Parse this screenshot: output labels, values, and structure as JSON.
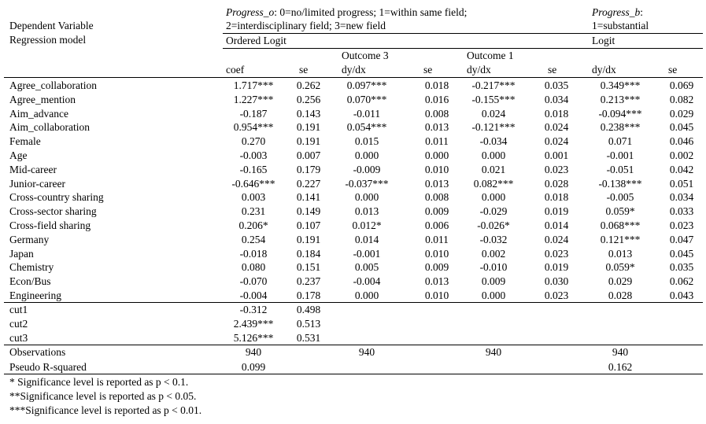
{
  "header": {
    "dependent_variable_label": "Dependent Variable",
    "regression_model_label": "Regression model",
    "progress_o_name": "Progress_o",
    "progress_o_desc1": ": 0=no/limited progress; 1=within same field;",
    "progress_o_desc2": "2=interdisciplinary field; 3=new field",
    "progress_b_name": "Progress_b",
    "progress_b_colon": ":",
    "progress_b_desc": "1=substantial",
    "ordered_logit": "Ordered Logit",
    "logit": "Logit",
    "outcome3": "Outcome 3",
    "outcome1": "Outcome 1",
    "columns": [
      "coef",
      "se",
      "dy/dx",
      "se",
      "dy/dx",
      "se",
      "dy/dx",
      "se"
    ]
  },
  "rows": [
    {
      "label": "Agree_collaboration",
      "v": [
        "1.717***",
        "0.262",
        "0.097***",
        "0.018",
        "-0.217***",
        "0.035",
        "0.349***",
        "0.069"
      ]
    },
    {
      "label": "Agree_mention",
      "v": [
        "1.227***",
        "0.256",
        "0.070***",
        "0.016",
        "-0.155***",
        "0.034",
        "0.213***",
        "0.082"
      ]
    },
    {
      "label": "Aim_advance",
      "v": [
        "-0.187",
        "0.143",
        "-0.011",
        "0.008",
        "0.024",
        "0.018",
        "-0.094***",
        "0.029"
      ]
    },
    {
      "label": "Aim_collaboration",
      "v": [
        "0.954***",
        "0.191",
        "0.054***",
        "0.013",
        "-0.121***",
        "0.024",
        "0.238***",
        "0.045"
      ]
    },
    {
      "label": "Female",
      "v": [
        "0.270",
        "0.191",
        "0.015",
        "0.011",
        "-0.034",
        "0.024",
        "0.071",
        "0.046"
      ]
    },
    {
      "label": "Age",
      "v": [
        "-0.003",
        "0.007",
        "0.000",
        "0.000",
        "0.000",
        "0.001",
        "-0.001",
        "0.002"
      ]
    },
    {
      "label": "Mid-career",
      "v": [
        "-0.165",
        "0.179",
        "-0.009",
        "0.010",
        "0.021",
        "0.023",
        "-0.051",
        "0.042"
      ]
    },
    {
      "label": "Junior-career",
      "v": [
        "-0.646***",
        "0.227",
        "-0.037***",
        "0.013",
        "0.082***",
        "0.028",
        "-0.138***",
        "0.051"
      ]
    },
    {
      "label": "Cross-country sharing",
      "v": [
        "0.003",
        "0.141",
        "0.000",
        "0.008",
        "0.000",
        "0.018",
        "-0.005",
        "0.034"
      ]
    },
    {
      "label": "Cross-sector sharing",
      "v": [
        "0.231",
        "0.149",
        "0.013",
        "0.009",
        "-0.029",
        "0.019",
        "0.059*",
        "0.033"
      ]
    },
    {
      "label": "Cross-field sharing",
      "v": [
        "0.206*",
        "0.107",
        "0.012*",
        "0.006",
        "-0.026*",
        "0.014",
        "0.068***",
        "0.023"
      ]
    },
    {
      "label": "Germany",
      "v": [
        "0.254",
        "0.191",
        "0.014",
        "0.011",
        "-0.032",
        "0.024",
        "0.121***",
        "0.047"
      ]
    },
    {
      "label": "Japan",
      "v": [
        "-0.018",
        "0.184",
        "-0.001",
        "0.010",
        "0.002",
        "0.023",
        "0.013",
        "0.045"
      ]
    },
    {
      "label": "Chemistry",
      "v": [
        "0.080",
        "0.151",
        "0.005",
        "0.009",
        "-0.010",
        "0.019",
        "0.059*",
        "0.035"
      ]
    },
    {
      "label": "Econ/Bus",
      "v": [
        "-0.070",
        "0.237",
        "-0.004",
        "0.013",
        "0.009",
        "0.030",
        "0.029",
        "0.062"
      ]
    },
    {
      "label": "Engineering",
      "v": [
        "-0.004",
        "0.178",
        "0.000",
        "0.010",
        "0.000",
        "0.023",
        "0.028",
        "0.043"
      ]
    }
  ],
  "cuts": [
    {
      "label": "cut1",
      "coef": "-0.312",
      "se": "0.498"
    },
    {
      "label": "cut2",
      "coef": "2.439***",
      "se": "0.513"
    },
    {
      "label": "cut3",
      "coef": "5.126***",
      "se": "0.531"
    }
  ],
  "observations": {
    "label": "Observations",
    "values": [
      "940",
      "940",
      "940",
      "940"
    ]
  },
  "pseudo_r2": {
    "label": "Pseudo R-squared",
    "values": [
      "0.099",
      "",
      "",
      "0.162"
    ]
  },
  "footnotes": [
    "* Significance level is reported as p < 0.1.",
    "**Significance level is reported as p < 0.05.",
    "***Significance level is reported as p < 0.01."
  ]
}
